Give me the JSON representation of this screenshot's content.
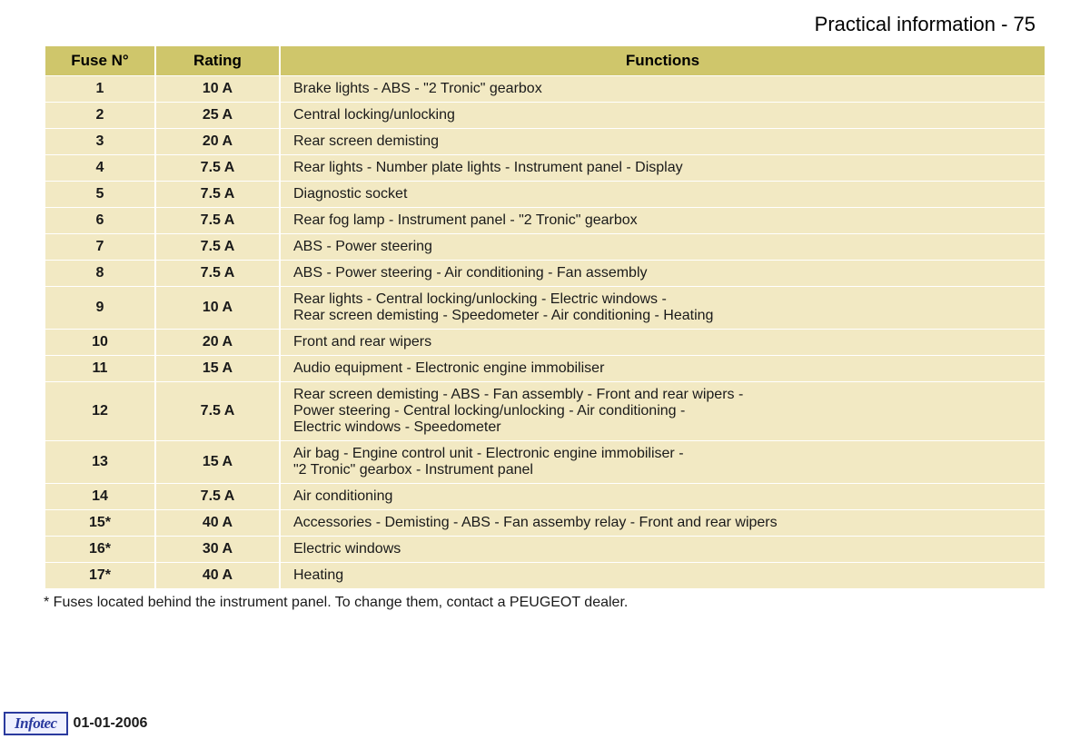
{
  "title": "Practical information - 75",
  "table": {
    "header_bg": "#cfc66b",
    "row_bg": "#f2e9c3",
    "text_color": "#1a1a1a",
    "columns": [
      "Fuse N°",
      "Rating",
      "Functions"
    ],
    "rows": [
      {
        "fuse": "1",
        "rating": "10 A",
        "func": "Brake lights - ABS - \"2 Tronic\" gearbox"
      },
      {
        "fuse": "2",
        "rating": "25 A",
        "func": "Central locking/unlocking"
      },
      {
        "fuse": "3",
        "rating": "20 A",
        "func": "Rear screen demisting"
      },
      {
        "fuse": "4",
        "rating": "7.5 A",
        "func": "Rear lights - Number plate lights - Instrument panel - Display"
      },
      {
        "fuse": "5",
        "rating": "7.5 A",
        "func": "Diagnostic socket"
      },
      {
        "fuse": "6",
        "rating": "7.5 A",
        "func": "Rear fog lamp - Instrument panel - \"2 Tronic\" gearbox"
      },
      {
        "fuse": "7",
        "rating": "7.5 A",
        "func": "ABS - Power steering"
      },
      {
        "fuse": "8",
        "rating": "7.5 A",
        "func": "ABS - Power steering - Air conditioning - Fan assembly"
      },
      {
        "fuse": "9",
        "rating": "10 A",
        "func": "Rear lights - Central locking/unlocking - Electric windows -\nRear screen demisting - Speedometer - Air conditioning - Heating"
      },
      {
        "fuse": "10",
        "rating": "20 A",
        "func": "Front and rear wipers"
      },
      {
        "fuse": "11",
        "rating": "15 A",
        "func": "Audio equipment - Electronic engine immobiliser"
      },
      {
        "fuse": "12",
        "rating": "7.5 A",
        "func": "Rear screen demisting - ABS - Fan assembly - Front and rear wipers -\nPower steering - Central locking/unlocking - Air conditioning -\nElectric windows - Speedometer"
      },
      {
        "fuse": "13",
        "rating": "15 A",
        "func": "Air bag - Engine control unit - Electronic engine immobiliser -\n\"2 Tronic\" gearbox - Instrument panel"
      },
      {
        "fuse": "14",
        "rating": "7.5 A",
        "func": "Air conditioning"
      },
      {
        "fuse": "15*",
        "rating": "40 A",
        "func": "Accessories - Demisting - ABS - Fan assemby relay - Front and rear wipers"
      },
      {
        "fuse": "16*",
        "rating": "30 A",
        "func": "Electric windows"
      },
      {
        "fuse": "17*",
        "rating": "40 A",
        "func": "Heating"
      }
    ]
  },
  "footnote": "*  Fuses located behind the instrument panel. To change them, contact a PEUGEOT dealer.",
  "footer": {
    "badge": "Infotec",
    "date": "01-01-2006",
    "badge_bg": "#eef0ff",
    "badge_border": "#2a3a9e",
    "badge_text_color": "#2a3a9e"
  }
}
